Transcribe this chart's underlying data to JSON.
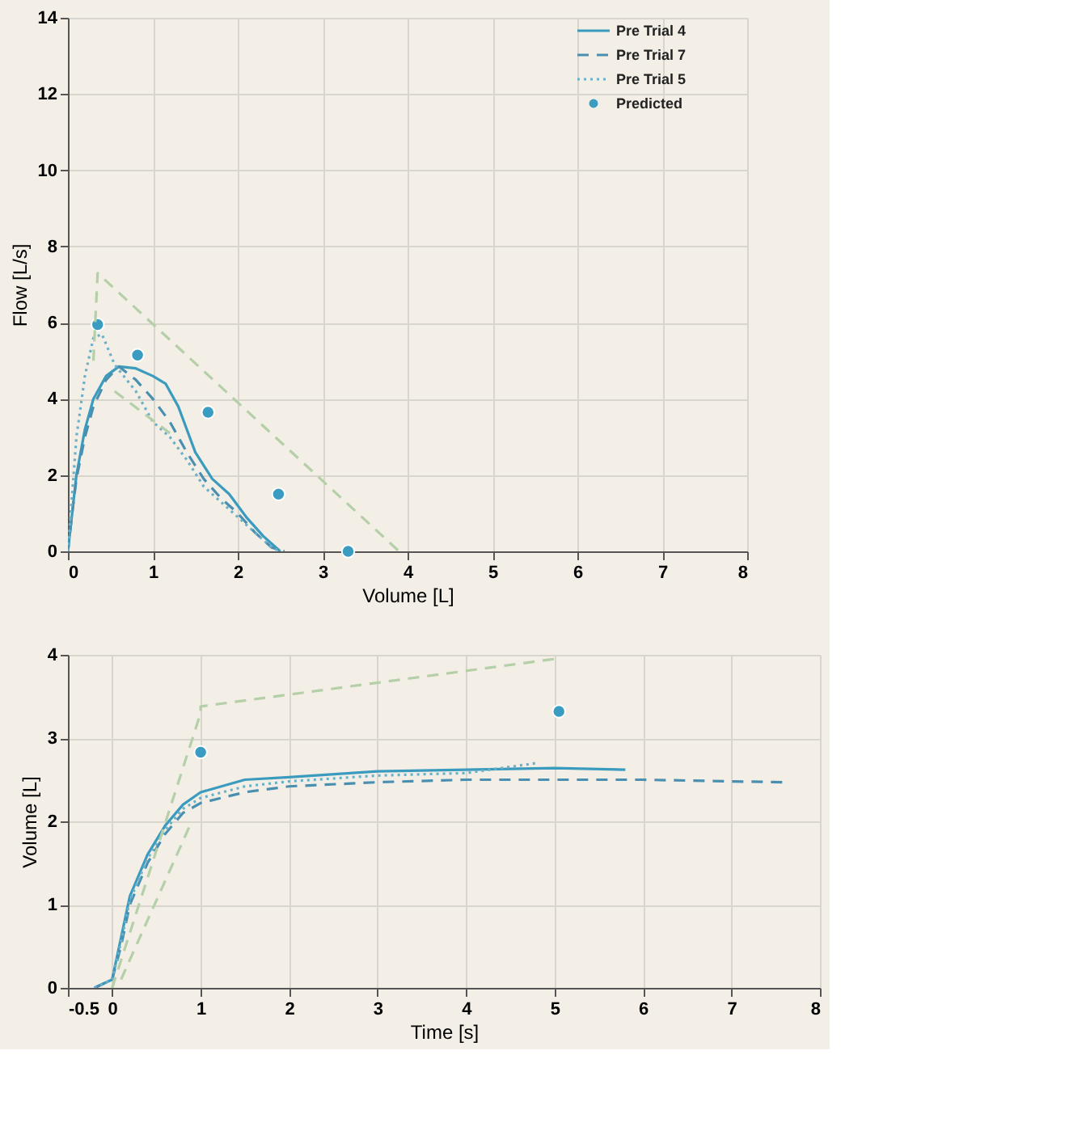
{
  "chart_data": [
    {
      "type": "line",
      "xlabel": "Volume [L]",
      "ylabel": "Flow [L/s]",
      "xlim": [
        0,
        8
      ],
      "ylim": [
        0,
        14
      ],
      "xticks": [
        0,
        1,
        2,
        3,
        4,
        5,
        6,
        7,
        8
      ],
      "yticks": [
        0,
        2,
        4,
        6,
        8,
        10,
        12,
        14
      ],
      "grid": true,
      "legend": "top right",
      "series": [
        {
          "name": "Pre Trial 4",
          "line_style": "solid",
          "color": "#3b9bbf",
          "x": [
            0,
            0.05,
            0.1,
            0.2,
            0.3,
            0.45,
            0.6,
            0.8,
            1.0,
            1.15,
            1.3,
            1.5,
            1.7,
            1.9,
            2.1,
            2.3,
            2.45,
            2.5
          ],
          "values": [
            0,
            1,
            2,
            3.2,
            4,
            4.6,
            4.85,
            4.8,
            4.6,
            4.4,
            3.8,
            2.6,
            1.9,
            1.5,
            0.9,
            0.4,
            0.1,
            0
          ]
        },
        {
          "name": "Pre Trial 7",
          "line_style": "dashed",
          "color": "#4a8fb0",
          "x": [
            0,
            0.05,
            0.1,
            0.2,
            0.3,
            0.45,
            0.6,
            0.8,
            1.0,
            1.2,
            1.4,
            1.6,
            1.8,
            2.0,
            2.2,
            2.4,
            2.55
          ],
          "values": [
            0,
            1,
            1.9,
            3,
            3.8,
            4.5,
            4.85,
            4.5,
            4.0,
            3.4,
            2.6,
            1.9,
            1.4,
            1.0,
            0.5,
            0.1,
            0
          ]
        },
        {
          "name": "Pre Trial 5",
          "line_style": "dotted",
          "color": "#6ab0c8",
          "x": [
            0,
            0.05,
            0.1,
            0.2,
            0.3,
            0.4,
            0.55,
            0.8,
            1.0,
            1.2,
            1.4,
            1.6,
            1.8,
            2.0,
            2.2,
            2.4,
            2.5
          ],
          "values": [
            0,
            1.5,
            3,
            4.6,
            5.6,
            5.7,
            4.9,
            4.2,
            3.4,
            3.0,
            2.4,
            1.7,
            1.3,
            0.9,
            0.5,
            0.1,
            0
          ]
        },
        {
          "name": "Predicted",
          "type": "scatter",
          "marker": "circle",
          "color": "#3a9cc0",
          "x": [
            0.35,
            0.82,
            1.65,
            2.48,
            3.3
          ],
          "values": [
            5.95,
            5.15,
            3.65,
            1.5,
            0
          ]
        },
        {
          "line_style": "dashed",
          "color": "#b5cfa8",
          "x": [
            0.3,
            0.35,
            3.9
          ],
          "values": [
            5.0,
            7.3,
            0
          ]
        },
        {
          "line_style": "dashed",
          "color": "#b5cfa8",
          "x": [
            0.55,
            1.2
          ],
          "values": [
            4.2,
            3.1
          ]
        }
      ]
    },
    {
      "type": "line",
      "xlabel": "Time [s]",
      "ylabel": "Volume [L]",
      "xlim": [
        -0.5,
        8
      ],
      "ylim": [
        0,
        4
      ],
      "xticks": [
        -0.5,
        0,
        1,
        2,
        3,
        4,
        5,
        6,
        7,
        8
      ],
      "yticks": [
        0,
        1,
        2,
        3,
        4
      ],
      "grid": true,
      "series": [
        {
          "line_style": "solid",
          "color": "#3b9bbf",
          "x": [
            -0.2,
            0,
            0.1,
            0.2,
            0.4,
            0.6,
            0.8,
            1,
            1.5,
            2,
            3,
            4,
            5,
            5.8
          ],
          "values": [
            0,
            0.1,
            0.6,
            1.1,
            1.6,
            1.95,
            2.2,
            2.35,
            2.5,
            2.53,
            2.6,
            2.62,
            2.64,
            2.62
          ]
        },
        {
          "line_style": "dashed",
          "color": "#4a8fb0",
          "x": [
            -0.2,
            0,
            0.1,
            0.2,
            0.4,
            0.6,
            0.8,
            1,
            1.5,
            2,
            3,
            4,
            5,
            6,
            7,
            7.6
          ],
          "values": [
            0,
            0.1,
            0.5,
            1.0,
            1.5,
            1.85,
            2.1,
            2.22,
            2.35,
            2.42,
            2.47,
            2.5,
            2.5,
            2.5,
            2.48,
            2.47
          ]
        },
        {
          "line_style": "dotted",
          "color": "#6ab0c8",
          "x": [
            -0.2,
            0,
            0.1,
            0.2,
            0.4,
            0.6,
            0.8,
            1,
            1.5,
            2,
            3,
            4,
            4.8
          ],
          "values": [
            0,
            0.1,
            0.55,
            1.05,
            1.55,
            1.9,
            2.15,
            2.28,
            2.42,
            2.48,
            2.55,
            2.58,
            2.7
          ]
        },
        {
          "type": "scatter",
          "marker": "circle",
          "color": "#3a9cc0",
          "x": [
            1,
            5.05
          ],
          "values": [
            2.83,
            3.32
          ]
        },
        {
          "line_style": "dashed",
          "color": "#b5cfa8",
          "x": [
            0,
            1,
            1,
            5
          ],
          "values": [
            0,
            3.3,
            3.38,
            3.95
          ]
        },
        {
          "line_style": "dashed",
          "color": "#b5cfa8",
          "x": [
            0.1,
            0.9
          ],
          "values": [
            0.1,
            2.0
          ]
        }
      ]
    }
  ]
}
